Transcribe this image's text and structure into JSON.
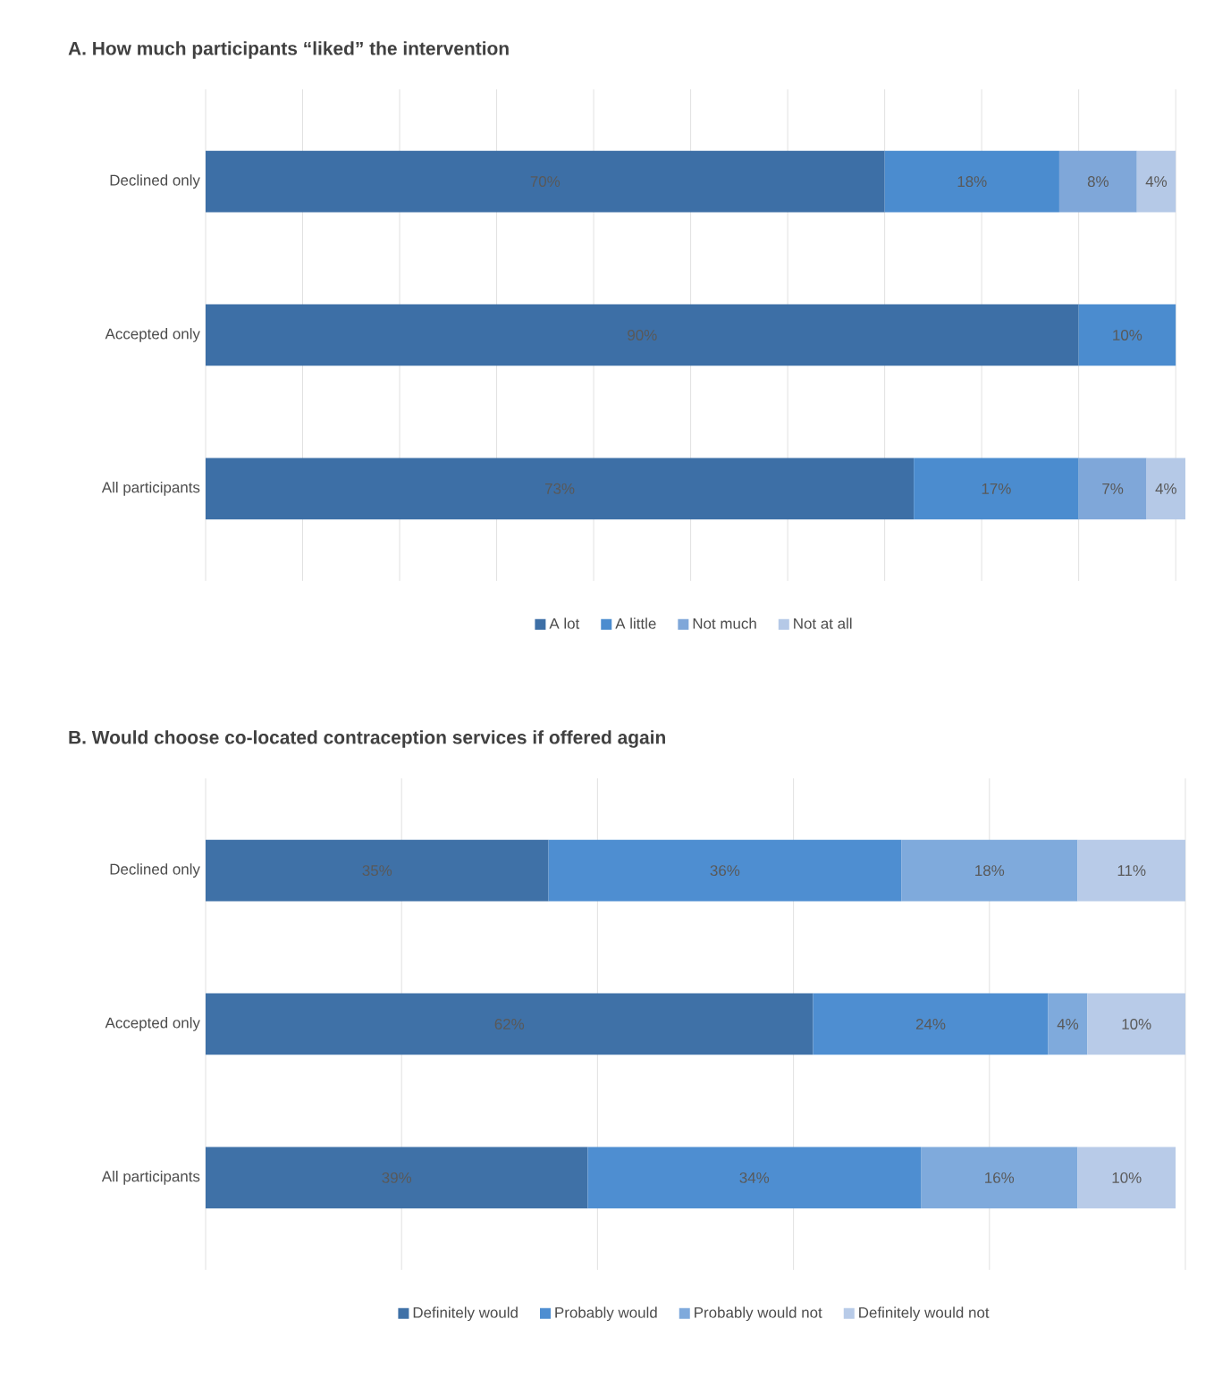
{
  "chart_data": [
    {
      "type": "bar",
      "orientation": "horizontal",
      "stacked": true,
      "title": "A. How much participants “liked” the intervention",
      "categories": [
        "Declined only",
        "Accepted only",
        "All participants"
      ],
      "series": [
        {
          "name": "A lot",
          "color": "#3d6fa6",
          "values": [
            70,
            90,
            73
          ],
          "value_labels": [
            "70%",
            "90%",
            "73%"
          ]
        },
        {
          "name": "A little",
          "color": "#4b8ccf",
          "values": [
            18,
            10,
            17
          ],
          "value_labels": [
            "18%",
            "10%",
            "17%"
          ]
        },
        {
          "name": "Not much",
          "color": "#7fa7d9",
          "values": [
            8,
            null,
            7
          ],
          "value_labels": [
            "8%",
            null,
            "7%"
          ]
        },
        {
          "name": "Not at all",
          "color": "#b5c9e7",
          "values": [
            4,
            null,
            4
          ],
          "value_labels": [
            "4%",
            null,
            "4%"
          ]
        }
      ],
      "xlim": [
        0,
        101
      ],
      "xticks": [
        {
          "value": 0,
          "label": null
        },
        {
          "value": 10,
          "label": null
        },
        {
          "value": 20,
          "label": null
        },
        {
          "value": 30,
          "label": null
        },
        {
          "value": 40,
          "label": null
        },
        {
          "value": 50,
          "label": null
        },
        {
          "value": 60,
          "label": null
        },
        {
          "value": 70,
          "label": null
        },
        {
          "value": 80,
          "label": null
        },
        {
          "value": 90,
          "label": null
        },
        {
          "value": 100,
          "label": null
        }
      ],
      "grid": "x",
      "legend": "bottom",
      "tick_labels": "y"
    },
    {
      "type": "bar",
      "orientation": "horizontal",
      "stacked": true,
      "title": "B. Would choose co-located contraception services if offered again",
      "categories": [
        "Declined only",
        "Accepted only",
        "All participants"
      ],
      "series": [
        {
          "name": "Definitely would",
          "color": "#3f71a7",
          "values": [
            35,
            62,
            39
          ],
          "value_labels": [
            "35%",
            "62%",
            "39%"
          ]
        },
        {
          "name": "Probably would",
          "color": "#4e8ed1",
          "values": [
            36,
            24,
            34
          ],
          "value_labels": [
            "36%",
            "24%",
            "34%"
          ]
        },
        {
          "name": "Probably would not",
          "color": "#7faadc",
          "values": [
            18,
            4,
            16
          ],
          "value_labels": [
            "18%",
            "4%",
            "16%"
          ]
        },
        {
          "name": "Definitely would not",
          "color": "#b8cbe8",
          "values": [
            11,
            10,
            10
          ],
          "value_labels": [
            "11%",
            "10%",
            "10%"
          ]
        }
      ],
      "xlim": [
        0,
        100
      ],
      "xticks": [
        {
          "value": 0,
          "label": null
        },
        {
          "value": 20,
          "label": null
        },
        {
          "value": 40,
          "label": null
        },
        {
          "value": 60,
          "label": null
        },
        {
          "value": 80,
          "label": null
        },
        {
          "value": 100,
          "label": null
        }
      ],
      "grid": "x",
      "legend": "bottom",
      "tick_labels": "y"
    }
  ]
}
